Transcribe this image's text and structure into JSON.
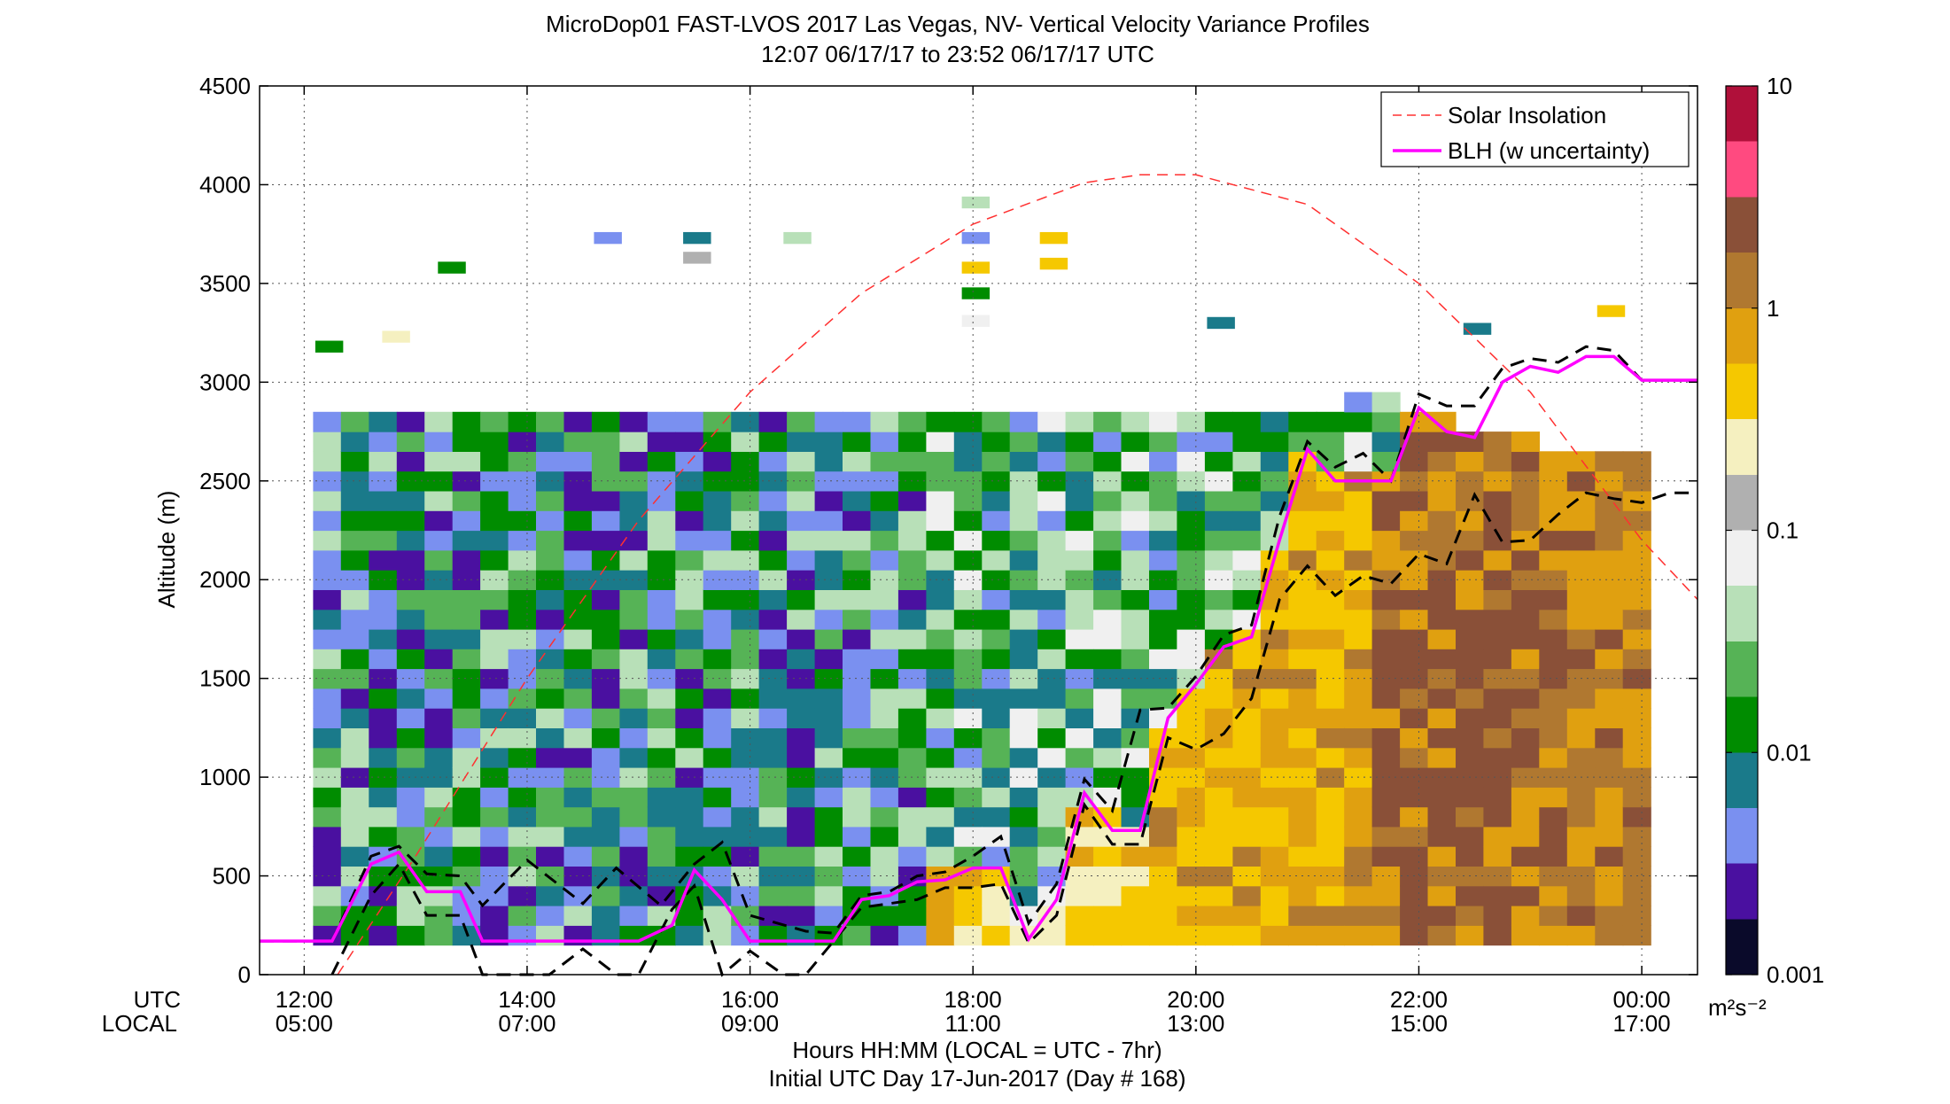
{
  "chart_data": {
    "type": "heatmap",
    "title": "MicroDop01 FAST-LVOS 2017 Las Vegas, NV- Vertical Velocity Variance Profiles",
    "subtitle": "12:07 06/17/17 to 23:52 06/17/17  UTC",
    "ylabel": "Altitude (m)",
    "xlabel": "Hours HH:MM  (LOCAL = UTC - 7hr)",
    "xlabel2": "Initial UTC Day 17-Jun-2017 (Day # 168)",
    "row_labels": {
      "utc": "UTC",
      "local": "LOCAL"
    },
    "xlim": [
      11.6,
      24.5
    ],
    "ylim": [
      0,
      4500
    ],
    "grid": true,
    "x_ticks": [
      {
        "x": 12,
        "utc": "12:00",
        "local": "05:00"
      },
      {
        "x": 14,
        "utc": "14:00",
        "local": "07:00"
      },
      {
        "x": 16,
        "utc": "16:00",
        "local": "09:00"
      },
      {
        "x": 18,
        "utc": "18:00",
        "local": "11:00"
      },
      {
        "x": 20,
        "utc": "20:00",
        "local": "13:00"
      },
      {
        "x": 22,
        "utc": "22:00",
        "local": "15:00"
      },
      {
        "x": 24,
        "utc": "00:00",
        "local": "17:00"
      }
    ],
    "y_ticks": [
      "0",
      "500",
      "1000",
      "1500",
      "2000",
      "2500",
      "3000",
      "3500",
      "4000",
      "4500"
    ],
    "legend": {
      "position": "top-right",
      "entries": [
        {
          "label": "Solar Insolation",
          "color": "#ff3030",
          "style": "dashed"
        },
        {
          "label": "BLH (w uncertainty)",
          "color": "#ff00ff",
          "style": "solid"
        }
      ]
    },
    "colorbar": {
      "scale": "log",
      "min": 0.001,
      "max": 10,
      "tick_labels": [
        "10",
        "1",
        "0.1",
        "0.01",
        "0.001"
      ],
      "unit_label": "m²s⁻²",
      "colors": [
        "#0a0a2a",
        "#4a10a0",
        "#7a90f0",
        "#1a7a8a",
        "#008c00",
        "#56b356",
        "#b8e0b8",
        "#f0f0f0",
        "#b0b0b0",
        "#f5f0c0",
        "#f5c800",
        "#e0a010",
        "#b07830",
        "#8a5038",
        "#ff4a80",
        "#b0103a"
      ]
    },
    "bin_height_m": 100,
    "bin_width_h": 0.25,
    "variance_profile_summary": [
      {
        "hours_utc": "12:00-17:30",
        "altitude_m": "150-2800",
        "variance_m2s2": "0.005-0.05"
      },
      {
        "hours_utc": "17:30-19:30",
        "altitude_m": "150-1200",
        "variance_m2s2": "0.2-0.6"
      },
      {
        "hours_utc": "19:30-21:30",
        "altitude_m": "150-1900",
        "variance_m2s2": "0.3-1.0"
      },
      {
        "hours_utc": "21:30-24:00",
        "altitude_m": "150-2800",
        "variance_m2s2": "0.5-3"
      }
    ],
    "series": [
      {
        "name": "Solar Insolation",
        "x": [
          12.3,
          13,
          14,
          15,
          16,
          17,
          18,
          19,
          19.5,
          20,
          21,
          22,
          23,
          24,
          24.5
        ],
        "y": [
          0,
          600,
          1500,
          2300,
          2950,
          3450,
          3800,
          4010,
          4050,
          4050,
          3900,
          3500,
          2950,
          2200,
          1900
        ]
      },
      {
        "name": "BLH (w uncertainty)",
        "x": [
          11.6,
          12.25,
          12.6,
          12.85,
          13.1,
          13.4,
          13.6,
          14.3,
          14.5,
          15.0,
          15.3,
          15.5,
          15.75,
          16.0,
          16.5,
          16.75,
          17.0,
          17.25,
          17.5,
          17.75,
          18.0,
          18.25,
          18.5,
          18.75,
          19.0,
          19.25,
          19.5,
          19.75,
          20.0,
          20.25,
          20.5,
          20.75,
          21.0,
          21.25,
          21.5,
          21.75,
          22.0,
          22.25,
          22.5,
          22.75,
          23.0,
          23.25,
          23.5,
          23.75,
          24.0,
          24.25,
          24.5
        ],
        "y": [
          170,
          170,
          560,
          620,
          420,
          420,
          170,
          170,
          170,
          170,
          250,
          530,
          380,
          170,
          170,
          170,
          380,
          400,
          470,
          480,
          540,
          540,
          180,
          380,
          920,
          730,
          730,
          1300,
          1470,
          1660,
          1710,
          2200,
          2660,
          2500,
          2500,
          2500,
          2870,
          2750,
          2720,
          3000,
          3080,
          3050,
          3130,
          3130,
          3010,
          3010,
          3010
        ]
      },
      {
        "name": "BLH upper bound",
        "x": [
          11.6,
          12.25,
          12.6,
          12.85,
          13.1,
          13.4,
          13.6,
          14.0,
          14.5,
          14.8,
          15.2,
          15.5,
          15.75,
          16.0,
          16.5,
          16.75,
          17.0,
          17.25,
          17.5,
          17.75,
          18.0,
          18.25,
          18.5,
          18.75,
          19.0,
          19.25,
          19.5,
          19.75,
          20.0,
          20.25,
          20.5,
          20.75,
          21.0,
          21.25,
          21.5,
          21.75,
          22.0,
          22.25,
          22.5,
          22.75,
          23.0,
          23.25,
          23.5,
          23.75,
          24.0,
          24.25,
          24.5
        ],
        "y": [
          170,
          170,
          600,
          650,
          510,
          500,
          350,
          580,
          360,
          540,
          350,
          560,
          670,
          300,
          220,
          210,
          400,
          420,
          500,
          520,
          600,
          700,
          260,
          460,
          990,
          830,
          1340,
          1350,
          1510,
          1720,
          1770,
          2320,
          2700,
          2570,
          2640,
          2500,
          2940,
          2880,
          2880,
          3070,
          3120,
          3100,
          3180,
          3160,
          3010,
          3010,
          3010
        ]
      },
      {
        "name": "BLH lower bound",
        "x": [
          12.25,
          12.6,
          12.85,
          13.1,
          13.4,
          13.6,
          13.8,
          14.2,
          14.5,
          14.8,
          15.0,
          15.3,
          15.5,
          15.75,
          16.0,
          16.3,
          16.5,
          17.0,
          17.25,
          17.5,
          17.75,
          18.0,
          18.25,
          18.5,
          18.75,
          19.0,
          19.25,
          19.5,
          19.75,
          20.0,
          20.25,
          20.5,
          20.75,
          21.0,
          21.25,
          21.5,
          21.75,
          22.0,
          22.25,
          22.5,
          22.75,
          23.0,
          23.25,
          23.5,
          23.75,
          24.0,
          24.25,
          24.5
        ],
        "y": [
          0,
          400,
          560,
          300,
          300,
          0,
          0,
          0,
          130,
          0,
          0,
          330,
          450,
          0,
          120,
          0,
          0,
          340,
          360,
          380,
          440,
          440,
          460,
          160,
          300,
          860,
          660,
          660,
          1200,
          1140,
          1220,
          1400,
          1900,
          2070,
          1920,
          2020,
          1980,
          2130,
          2080,
          2430,
          2190,
          2200,
          2330,
          2440,
          2410,
          2390,
          2440,
          2440
        ]
      }
    ]
  }
}
